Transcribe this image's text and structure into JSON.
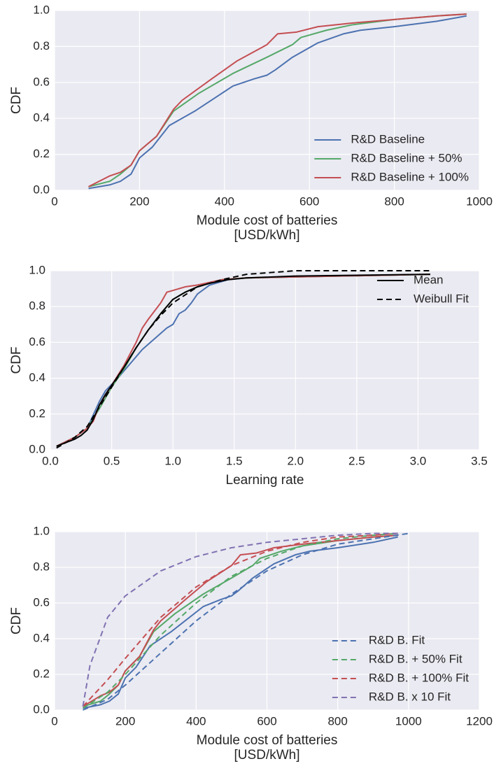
{
  "chart_data": [
    {
      "type": "line",
      "ylabel": "CDF",
      "xlabel": [
        "Module cost of batteries",
        "[USD/kWh]"
      ],
      "xlim": [
        0,
        1000
      ],
      "xticks": [
        0,
        200,
        400,
        600,
        800,
        1000
      ],
      "ylim": [
        0,
        1
      ],
      "yticks": [
        {
          "value": 0,
          "label": "0.0"
        },
        0.2,
        0.4,
        0.6,
        0.8,
        {
          "value": 1,
          "label": "1.0"
        }
      ],
      "grid": true,
      "legend": "lower right",
      "series": [
        {
          "name": "R&D Baseline",
          "color": "#4c72b0",
          "dash": false,
          "x": [
            80,
            130,
            155,
            180,
            200,
            230,
            270,
            330,
            420,
            470,
            500,
            520,
            560,
            620,
            680,
            720,
            800,
            900,
            970
          ],
          "values": [
            0.01,
            0.03,
            0.05,
            0.09,
            0.18,
            0.24,
            0.36,
            0.44,
            0.58,
            0.62,
            0.64,
            0.67,
            0.74,
            0.82,
            0.87,
            0.89,
            0.91,
            0.94,
            0.97
          ]
        },
        {
          "name": "R&D Baseline + 50%",
          "color": "#55a868",
          "dash": false,
          "x": [
            80,
            130,
            155,
            180,
            200,
            240,
            280,
            340,
            420,
            500,
            560,
            580,
            640,
            700,
            800,
            900,
            970
          ],
          "values": [
            0.02,
            0.05,
            0.09,
            0.14,
            0.22,
            0.3,
            0.44,
            0.54,
            0.65,
            0.74,
            0.81,
            0.85,
            0.89,
            0.92,
            0.95,
            0.97,
            0.98
          ]
        },
        {
          "name": "R&D Baseline + 100%",
          "color": "#c44e52",
          "dash": false,
          "x": [
            80,
            130,
            155,
            180,
            200,
            240,
            280,
            300,
            370,
            430,
            500,
            525,
            570,
            620,
            700,
            800,
            900,
            970
          ],
          "values": [
            0.02,
            0.08,
            0.1,
            0.14,
            0.22,
            0.3,
            0.45,
            0.5,
            0.62,
            0.72,
            0.81,
            0.87,
            0.88,
            0.91,
            0.93,
            0.95,
            0.97,
            0.98
          ]
        }
      ]
    },
    {
      "type": "line",
      "ylabel": "CDF",
      "xlabel": [
        "Learning rate"
      ],
      "xlim": [
        0,
        3.5
      ],
      "xticks": [
        {
          "value": 0,
          "label": "0.0"
        },
        0.5,
        {
          "value": 1,
          "label": "1.0"
        },
        1.5,
        {
          "value": 2,
          "label": "2.0"
        },
        2.5,
        {
          "value": 3,
          "label": "3.0"
        },
        3.5
      ],
      "ylim": [
        0,
        1
      ],
      "yticks": [
        {
          "value": 0,
          "label": "0.0"
        },
        0.2,
        0.4,
        0.6,
        0.8,
        {
          "value": 1,
          "label": "1.0"
        }
      ],
      "grid": true,
      "legend": "upper right",
      "series": [
        {
          "color": "#4c72b0",
          "dash": false,
          "x": [
            0.05,
            0.2,
            0.3,
            0.4,
            0.45,
            0.55,
            0.65,
            0.75,
            0.85,
            0.95,
            1.0,
            1.05,
            1.1,
            1.15,
            1.2,
            1.3,
            1.45,
            1.6,
            3.1
          ],
          "values": [
            0.02,
            0.07,
            0.12,
            0.27,
            0.33,
            0.4,
            0.48,
            0.56,
            0.62,
            0.68,
            0.7,
            0.76,
            0.78,
            0.82,
            0.87,
            0.92,
            0.95,
            0.96,
            0.98
          ]
        },
        {
          "color": "#55a868",
          "dash": false,
          "x": [
            0.05,
            0.2,
            0.3,
            0.4,
            0.5,
            0.6,
            0.7,
            0.8,
            0.9,
            1.0,
            1.1,
            1.2,
            1.4,
            1.6,
            3.1
          ],
          "values": [
            0.02,
            0.07,
            0.12,
            0.23,
            0.35,
            0.45,
            0.57,
            0.67,
            0.76,
            0.84,
            0.88,
            0.91,
            0.95,
            0.96,
            0.98
          ]
        },
        {
          "color": "#c44e52",
          "dash": false,
          "x": [
            0.05,
            0.2,
            0.3,
            0.35,
            0.4,
            0.5,
            0.6,
            0.7,
            0.75,
            0.8,
            0.9,
            0.95,
            1.0,
            1.1,
            1.2,
            1.4,
            1.6,
            3.1
          ],
          "values": [
            0.02,
            0.07,
            0.12,
            0.16,
            0.25,
            0.36,
            0.47,
            0.6,
            0.68,
            0.73,
            0.82,
            0.88,
            0.89,
            0.91,
            0.92,
            0.95,
            0.96,
            0.98
          ]
        },
        {
          "name": "Mean",
          "color": "#000000",
          "dash": false,
          "x": [
            0.05,
            0.2,
            0.25,
            0.3,
            0.35,
            0.4,
            0.45,
            0.5,
            0.6,
            0.7,
            0.8,
            0.9,
            1.0,
            1.1,
            1.2,
            1.3,
            1.45,
            1.6,
            2.0,
            3.1
          ],
          "values": [
            0.02,
            0.06,
            0.08,
            0.11,
            0.17,
            0.25,
            0.31,
            0.36,
            0.46,
            0.57,
            0.67,
            0.76,
            0.84,
            0.88,
            0.91,
            0.93,
            0.95,
            0.96,
            0.97,
            0.98
          ]
        },
        {
          "name": "Weibull Fit",
          "color": "#000000",
          "dash": true,
          "x": [
            0.05,
            0.2,
            0.3,
            0.4,
            0.5,
            0.6,
            0.7,
            0.8,
            0.9,
            1.0,
            1.2,
            1.4,
            1.6,
            1.8,
            2.0,
            2.5,
            3.1
          ],
          "values": [
            0.01,
            0.07,
            0.13,
            0.24,
            0.35,
            0.46,
            0.57,
            0.67,
            0.75,
            0.82,
            0.91,
            0.95,
            0.98,
            0.99,
            1.0,
            1.0,
            1.0
          ]
        }
      ]
    },
    {
      "type": "line",
      "ylabel": "CDF",
      "xlabel": [
        "Module cost of batteries",
        "[USD/kWh]"
      ],
      "xlim": [
        0,
        1200
      ],
      "xticks": [
        0,
        200,
        400,
        600,
        800,
        1000,
        1200
      ],
      "ylim": [
        0,
        1
      ],
      "yticks": [
        {
          "value": 0,
          "label": "0.0"
        },
        0.2,
        0.4,
        0.6,
        0.8,
        {
          "value": 1,
          "label": "1.0"
        }
      ],
      "grid": true,
      "legend": "lower right",
      "series": [
        {
          "color": "#4c72b0",
          "dash": false,
          "x": [
            80,
            130,
            155,
            180,
            200,
            230,
            270,
            330,
            420,
            470,
            500,
            520,
            560,
            620,
            680,
            720,
            800,
            900,
            970
          ],
          "values": [
            0.01,
            0.03,
            0.05,
            0.09,
            0.18,
            0.24,
            0.36,
            0.44,
            0.58,
            0.62,
            0.64,
            0.67,
            0.74,
            0.82,
            0.87,
            0.89,
            0.91,
            0.94,
            0.97
          ]
        },
        {
          "color": "#55a868",
          "dash": false,
          "x": [
            80,
            130,
            155,
            180,
            200,
            240,
            280,
            340,
            420,
            500,
            560,
            580,
            640,
            700,
            800,
            900,
            970
          ],
          "values": [
            0.02,
            0.05,
            0.09,
            0.14,
            0.22,
            0.3,
            0.44,
            0.54,
            0.65,
            0.74,
            0.81,
            0.85,
            0.89,
            0.92,
            0.95,
            0.97,
            0.98
          ]
        },
        {
          "color": "#c44e52",
          "dash": false,
          "x": [
            80,
            130,
            155,
            180,
            200,
            240,
            280,
            300,
            370,
            430,
            500,
            525,
            570,
            620,
            700,
            800,
            900,
            970
          ],
          "values": [
            0.02,
            0.08,
            0.1,
            0.14,
            0.22,
            0.3,
            0.45,
            0.5,
            0.62,
            0.72,
            0.81,
            0.87,
            0.88,
            0.91,
            0.93,
            0.95,
            0.97,
            0.98
          ]
        },
        {
          "name": "R&D B. Fit",
          "color": "#4c72b0",
          "dash": true,
          "x": [
            80,
            150,
            200,
            300,
            400,
            500,
            600,
            700,
            800,
            900,
            1000
          ],
          "values": [
            0.0,
            0.06,
            0.14,
            0.32,
            0.5,
            0.65,
            0.78,
            0.87,
            0.93,
            0.96,
            0.99
          ]
        },
        {
          "name": "R&D B. + 50% Fit",
          "color": "#55a868",
          "dash": true,
          "x": [
            80,
            150,
            200,
            300,
            400,
            500,
            600,
            700,
            800,
            900,
            970
          ],
          "values": [
            0.01,
            0.1,
            0.2,
            0.42,
            0.6,
            0.75,
            0.85,
            0.92,
            0.96,
            0.98,
            0.99
          ]
        },
        {
          "name": "R&D B. + 100% Fit",
          "color": "#c44e52",
          "dash": true,
          "x": [
            80,
            150,
            200,
            300,
            400,
            500,
            600,
            700,
            800,
            900,
            970
          ],
          "values": [
            0.02,
            0.17,
            0.29,
            0.52,
            0.69,
            0.81,
            0.89,
            0.94,
            0.97,
            0.98,
            0.99
          ]
        },
        {
          "name": "R&D B. x 10 Fit",
          "color": "#8172b2",
          "dash": true,
          "x": [
            80,
            100,
            150,
            200,
            300,
            400,
            500,
            600,
            700,
            800,
            900,
            970
          ],
          "values": [
            0.02,
            0.25,
            0.52,
            0.64,
            0.78,
            0.86,
            0.91,
            0.94,
            0.96,
            0.98,
            0.99,
            0.99
          ]
        }
      ]
    }
  ]
}
